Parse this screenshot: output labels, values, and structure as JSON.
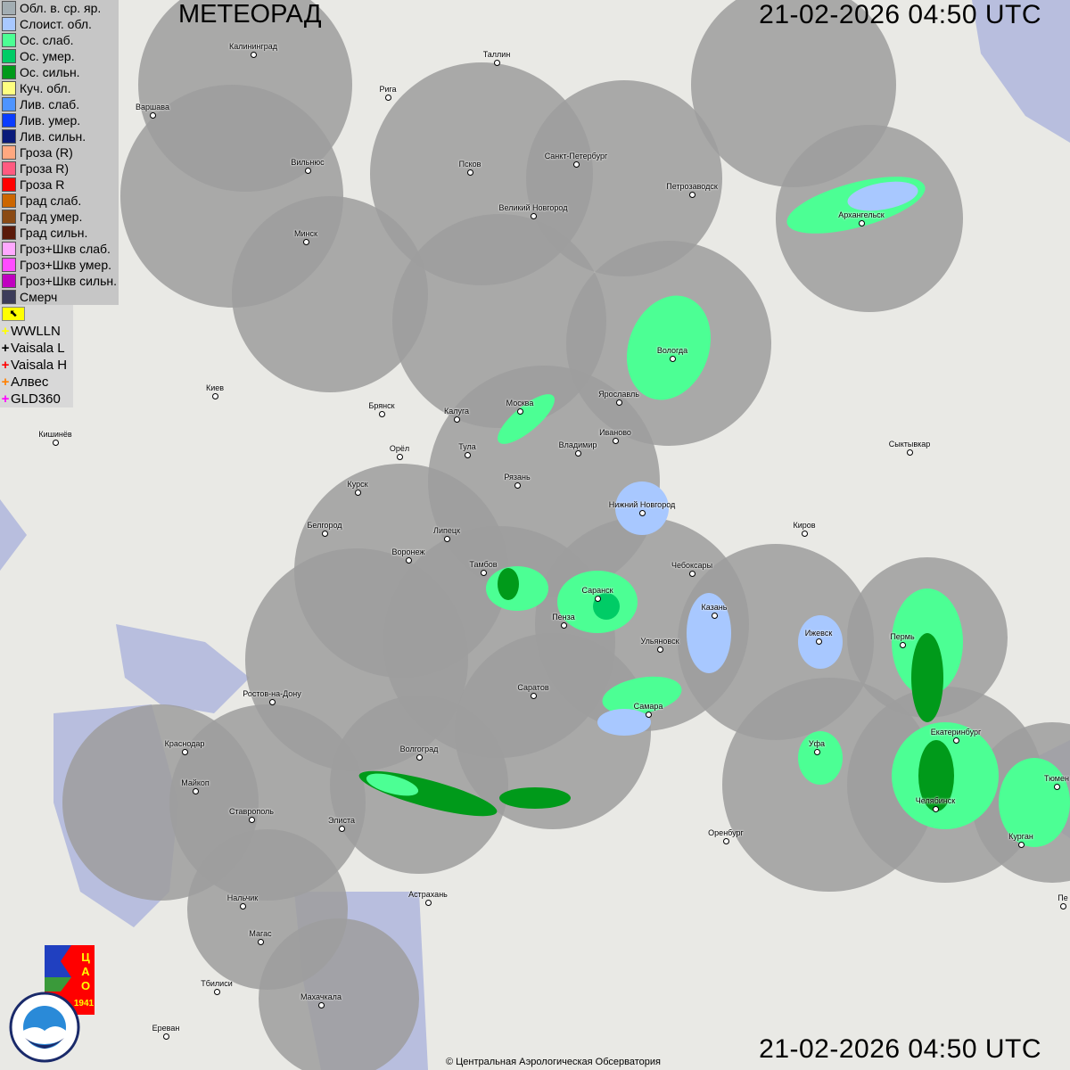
{
  "title": "МЕТЕОРАД",
  "datetime": "21-02-2026  04:50 UTC",
  "copyright": "© Центральная Аэрологическая Обсерватория",
  "legend": [
    {
      "label": "Обл. в. ср. яр.",
      "color": "#a3aeb3"
    },
    {
      "label": "Слоист. обл.",
      "color": "#a8c8ff"
    },
    {
      "label": "Ос. слаб.",
      "color": "#4cff94"
    },
    {
      "label": "Ос. умер.",
      "color": "#00cc66"
    },
    {
      "label": "Ос. сильн.",
      "color": "#009a1a"
    },
    {
      "label": "Куч. обл.",
      "color": "#ffff80"
    },
    {
      "label": "Лив. слаб.",
      "color": "#4d94ff"
    },
    {
      "label": "Лив. умер.",
      "color": "#0a3cff"
    },
    {
      "label": "Лив. сильн.",
      "color": "#0a1a7a"
    },
    {
      "label": "Гроза (R)",
      "color": "#ffa880"
    },
    {
      "label": "Гроза R)",
      "color": "#ff5a80"
    },
    {
      "label": "Гроза R",
      "color": "#ff0000"
    },
    {
      "label": "Град слаб.",
      "color": "#cc6600"
    },
    {
      "label": "Град умер.",
      "color": "#8a4a14"
    },
    {
      "label": "Град сильн.",
      "color": "#5a1a0a"
    },
    {
      "label": "Гроз+Шкв слаб.",
      "color": "#ffa8ff"
    },
    {
      "label": "Гроз+Шкв умер.",
      "color": "#ff4cff"
    },
    {
      "label": "Гроз+Шкв сильн.",
      "color": "#c000c0"
    },
    {
      "label": "Смерч",
      "color": "#3c3c5a"
    }
  ],
  "lightning_toggle_icon": "arrow-corner-icon",
  "lightning": [
    {
      "label": "WWLLN",
      "color": "#ffff00"
    },
    {
      "label": "Vaisala L",
      "color": "#000000"
    },
    {
      "label": "Vaisala H",
      "color": "#ff0000"
    },
    {
      "label": "Алвес",
      "color": "#ff8000"
    },
    {
      "label": "GLD360",
      "color": "#ff00ff"
    }
  ],
  "cities": [
    "Калининград",
    "Таллин",
    "Рига",
    "Варшава",
    "Вильнюс",
    "Псков",
    "Санкт-Петербург",
    "Петрозаводск",
    "Архангельск",
    "Великий Новгород",
    "Минск",
    "Вологда",
    "Москва",
    "Калуга",
    "Ярославль",
    "Брянск",
    "Иваново",
    "Киев",
    "Владимир",
    "Орёл",
    "Тула",
    "Кишинёв",
    "Сыктывкар",
    "Рязань",
    "Курск",
    "Нижний Новгород",
    "Белгород",
    "Липецк",
    "Киров",
    "Воронеж",
    "Тамбов",
    "Чебоксары",
    "Саранск",
    "Казань",
    "Ижевск",
    "Пермь",
    "Пенза",
    "Ульяновск",
    "Саратов",
    "Ростов-на-Дону",
    "Самара",
    "Уфа",
    "Екатеринбург",
    "Краснодар",
    "Волгоград",
    "Майкоп",
    "Челябинск",
    "Ставрополь",
    "Элиста",
    "Оренбург",
    "Курган",
    "Тюмен",
    "Нальчик",
    "Астрахань",
    "Магас",
    "Тбилиси",
    "Махачкала",
    "Ереван",
    "Пе"
  ],
  "logos": {
    "cao": "ЦАО 1941",
    "roshydromet": "РОСГИДРОМЕТ ROSHYDROMET"
  }
}
